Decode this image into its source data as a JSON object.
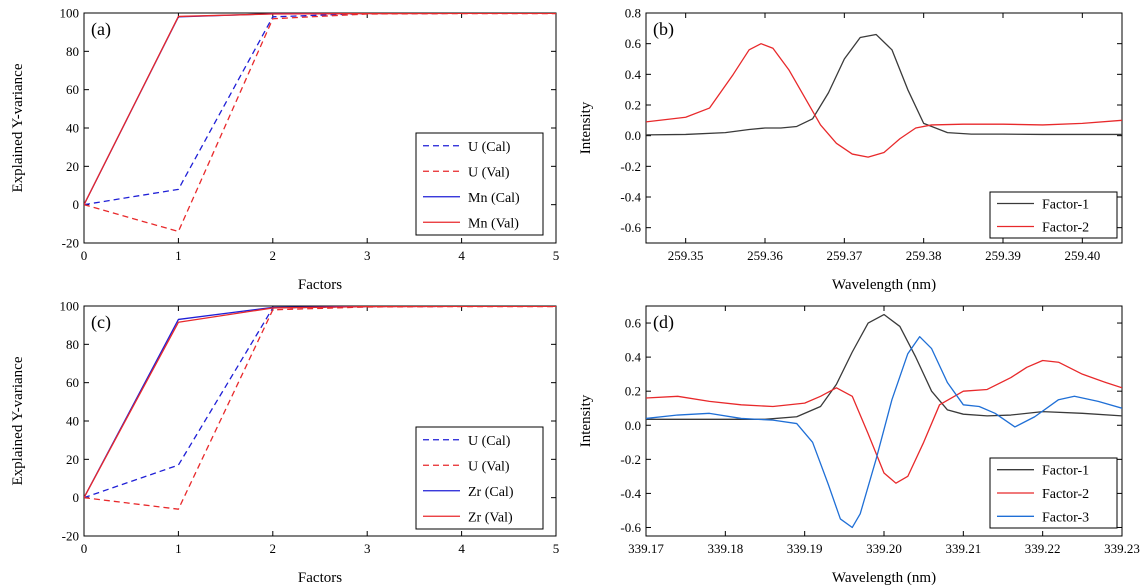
{
  "chart_data": [
    {
      "panel": "(a)",
      "type": "line",
      "xlabel": "Factors",
      "ylabel": "Explained Y-variance",
      "xlim": [
        0,
        5
      ],
      "ylim": [
        -20,
        100
      ],
      "xticks": [
        0,
        1,
        2,
        3,
        4,
        5
      ],
      "yticks": [
        -20,
        0,
        20,
        40,
        60,
        80,
        100
      ],
      "xtick_labels": [
        "0",
        "1",
        "2",
        "3",
        "4",
        "5"
      ],
      "ytick_labels": [
        "-20",
        "0",
        "20",
        "40",
        "60",
        "80",
        "100"
      ],
      "legend": "bottom-right",
      "grid": false,
      "x": [
        0,
        1,
        2,
        3,
        4,
        5
      ],
      "series": [
        {
          "name": "U (Cal)",
          "color": "#1f1fd6",
          "dash": true,
          "y": [
            0,
            8,
            98,
            99.7,
            99.8,
            99.8
          ]
        },
        {
          "name": "U (Val)",
          "color": "#e8292b",
          "dash": true,
          "y": [
            0,
            -14,
            97,
            99.5,
            99.7,
            99.7
          ]
        },
        {
          "name": "Mn (Cal)",
          "color": "#1f1fd6",
          "dash": false,
          "y": [
            0,
            98,
            99.6,
            99.8,
            99.8,
            99.8
          ]
        },
        {
          "name": "Mn (Val)",
          "color": "#e8292b",
          "dash": false,
          "y": [
            0,
            98.2,
            99.5,
            99.7,
            99.8,
            99.8
          ]
        }
      ]
    },
    {
      "panel": "(b)",
      "type": "line",
      "xlabel": "Wavelength (nm)",
      "ylabel": "Intensity",
      "xlim": [
        259.345,
        259.405
      ],
      "ylim": [
        -0.7,
        0.8
      ],
      "xticks": [
        259.35,
        259.36,
        259.37,
        259.38,
        259.39,
        259.4
      ],
      "yticks": [
        -0.6,
        -0.4,
        -0.2,
        0.0,
        0.2,
        0.4,
        0.6,
        0.8
      ],
      "xtick_labels": [
        "259.35",
        "259.36",
        "259.37",
        "259.38",
        "259.39",
        "259.40"
      ],
      "ytick_labels": [
        "-0.6",
        "-0.4",
        "-0.2",
        "0.0",
        "0.2",
        "0.4",
        "0.6",
        "0.8"
      ],
      "legend": "bottom-right",
      "grid": false,
      "series": [
        {
          "name": "Factor-1",
          "color": "#3a3a3a",
          "dash": false,
          "x": [
            259.345,
            259.35,
            259.355,
            259.358,
            259.36,
            259.362,
            259.364,
            259.366,
            259.368,
            259.37,
            259.372,
            259.374,
            259.376,
            259.378,
            259.38,
            259.383,
            259.386,
            259.39,
            259.395,
            259.4,
            259.405
          ],
          "y": [
            0.005,
            0.008,
            0.02,
            0.04,
            0.05,
            0.05,
            0.06,
            0.11,
            0.28,
            0.5,
            0.64,
            0.66,
            0.56,
            0.3,
            0.08,
            0.02,
            0.01,
            0.01,
            0.008,
            0.008,
            0.008
          ]
        },
        {
          "name": "Factor-2",
          "color": "#e8292b",
          "dash": false,
          "x": [
            259.345,
            259.35,
            259.353,
            259.356,
            259.358,
            259.3595,
            259.361,
            259.363,
            259.365,
            259.367,
            259.369,
            259.371,
            259.373,
            259.375,
            259.377,
            259.379,
            259.381,
            259.385,
            259.39,
            259.395,
            259.4,
            259.405
          ],
          "y": [
            0.09,
            0.12,
            0.18,
            0.4,
            0.56,
            0.6,
            0.57,
            0.43,
            0.25,
            0.07,
            -0.05,
            -0.12,
            -0.14,
            -0.11,
            -0.02,
            0.05,
            0.07,
            0.075,
            0.075,
            0.07,
            0.08,
            0.1
          ]
        }
      ]
    },
    {
      "panel": "(c)",
      "type": "line",
      "xlabel": "Factors",
      "ylabel": "Explained Y-variance",
      "xlim": [
        0,
        5
      ],
      "ylim": [
        -20,
        100
      ],
      "xticks": [
        0,
        1,
        2,
        3,
        4,
        5
      ],
      "yticks": [
        -20,
        0,
        20,
        40,
        60,
        80,
        100
      ],
      "xtick_labels": [
        "0",
        "1",
        "2",
        "3",
        "4",
        "5"
      ],
      "ytick_labels": [
        "-20",
        "0",
        "20",
        "40",
        "60",
        "80",
        "100"
      ],
      "legend": "bottom-right",
      "grid": false,
      "x": [
        0,
        1,
        2,
        3,
        4,
        5
      ],
      "series": [
        {
          "name": "U (Cal)",
          "color": "#1f1fd6",
          "dash": true,
          "y": [
            0,
            17,
            99,
            99.7,
            99.8,
            99.8
          ]
        },
        {
          "name": "U (Val)",
          "color": "#e8292b",
          "dash": true,
          "y": [
            0,
            -6,
            98,
            99.5,
            99.7,
            99.7
          ]
        },
        {
          "name": "Zr (Cal)",
          "color": "#1f1fd6",
          "dash": false,
          "y": [
            0,
            93,
            99.3,
            99.8,
            99.8,
            99.8
          ]
        },
        {
          "name": "Zr (Val)",
          "color": "#e8292b",
          "dash": false,
          "y": [
            0,
            91.5,
            99.0,
            99.7,
            99.8,
            99.8
          ]
        }
      ]
    },
    {
      "panel": "(d)",
      "type": "line",
      "xlabel": "Wavelength (nm)",
      "ylabel": "Intensity",
      "xlim": [
        339.17,
        339.23
      ],
      "ylim": [
        -0.65,
        0.7
      ],
      "xticks": [
        339.17,
        339.18,
        339.19,
        339.2,
        339.21,
        339.22,
        339.23
      ],
      "yticks": [
        -0.6,
        -0.4,
        -0.2,
        0.0,
        0.2,
        0.4,
        0.6
      ],
      "xtick_labels": [
        "339.17",
        "339.18",
        "339.19",
        "339.20",
        "339.21",
        "339.22",
        "339.23"
      ],
      "ytick_labels": [
        "-0.6",
        "-0.4",
        "-0.2",
        "0.0",
        "0.2",
        "0.4",
        "0.6"
      ],
      "legend": "bottom-right",
      "grid": false,
      "series": [
        {
          "name": "Factor-1",
          "color": "#3a3a3a",
          "dash": false,
          "x": [
            339.17,
            339.175,
            339.18,
            339.185,
            339.189,
            339.192,
            339.194,
            339.196,
            339.198,
            339.2,
            339.202,
            339.204,
            339.206,
            339.208,
            339.21,
            339.213,
            339.216,
            339.22,
            339.225,
            339.23
          ],
          "y": [
            0.035,
            0.035,
            0.035,
            0.035,
            0.05,
            0.11,
            0.24,
            0.43,
            0.6,
            0.65,
            0.58,
            0.4,
            0.2,
            0.09,
            0.065,
            0.055,
            0.06,
            0.08,
            0.07,
            0.055
          ]
        },
        {
          "name": "Factor-2",
          "color": "#e8292b",
          "dash": false,
          "x": [
            339.17,
            339.174,
            339.178,
            339.182,
            339.186,
            339.19,
            339.192,
            339.194,
            339.196,
            339.198,
            339.2,
            339.2015,
            339.203,
            339.205,
            339.207,
            339.21,
            339.213,
            339.216,
            339.218,
            339.22,
            339.222,
            339.225,
            339.228,
            339.23
          ],
          "y": [
            0.16,
            0.17,
            0.14,
            0.12,
            0.11,
            0.13,
            0.17,
            0.22,
            0.17,
            -0.05,
            -0.28,
            -0.34,
            -0.3,
            -0.1,
            0.12,
            0.2,
            0.21,
            0.28,
            0.34,
            0.38,
            0.37,
            0.3,
            0.25,
            0.22
          ]
        },
        {
          "name": "Factor-3",
          "color": "#1f6fd6",
          "dash": false,
          "x": [
            339.17,
            339.174,
            339.178,
            339.182,
            339.186,
            339.189,
            339.191,
            339.193,
            339.1945,
            339.196,
            339.197,
            339.199,
            339.201,
            339.203,
            339.2045,
            339.206,
            339.208,
            339.21,
            339.212,
            339.214,
            339.2165,
            339.219,
            339.222,
            339.224,
            339.227,
            339.23
          ],
          "y": [
            0.04,
            0.06,
            0.07,
            0.04,
            0.03,
            0.01,
            -0.1,
            -0.35,
            -0.55,
            -0.6,
            -0.52,
            -0.2,
            0.15,
            0.42,
            0.52,
            0.45,
            0.25,
            0.12,
            0.11,
            0.07,
            -0.01,
            0.05,
            0.15,
            0.17,
            0.14,
            0.1
          ]
        }
      ]
    }
  ]
}
